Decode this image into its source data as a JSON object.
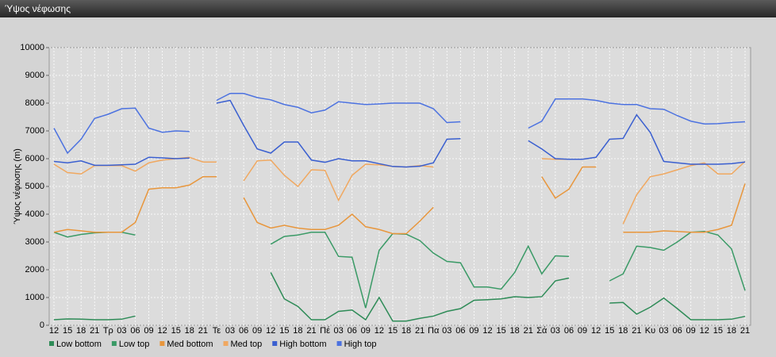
{
  "chart_data": {
    "type": "line",
    "title": "Ύψος νέφωσης",
    "y_label": "Ύψος νέφωσης (m)",
    "categories": [
      "12",
      "15",
      "18",
      "21",
      "Τρ",
      "03",
      "06",
      "09",
      "12",
      "15",
      "18",
      "21",
      "Τε",
      "03",
      "06",
      "09",
      "12",
      "15",
      "18",
      "21",
      "Πέ",
      "03",
      "06",
      "09",
      "12",
      "15",
      "18",
      "21",
      "Πα",
      "03",
      "06",
      "09",
      "12",
      "15",
      "18",
      "21",
      "Σά",
      "03",
      "06",
      "09",
      "12",
      "15",
      "18",
      "21",
      "Κυ",
      "03",
      "06",
      "09",
      "12",
      "15",
      "18",
      "21"
    ],
    "ylim": [
      0,
      10000
    ],
    "yticks": [
      0,
      1000,
      2000,
      3000,
      4000,
      5000,
      6000,
      7000,
      8000,
      9000,
      10000
    ],
    "grid": true,
    "legend": "bottom",
    "series": [
      {
        "name": "Low bottom",
        "color": "#2e8b57",
        "values": [
          200,
          230,
          220,
          200,
          200,
          220,
          330,
          null,
          null,
          null,
          null,
          null,
          null,
          null,
          null,
          null,
          1900,
          950,
          680,
          200,
          200,
          500,
          550,
          200,
          1000,
          150,
          150,
          250,
          330,
          500,
          600,
          900,
          920,
          950,
          1030,
          1000,
          1030,
          1600,
          1700,
          null,
          null,
          800,
          820,
          400,
          650,
          980,
          600,
          200,
          200,
          200,
          220,
          320
        ]
      },
      {
        "name": "Low top",
        "color": "#3a9a66",
        "values": [
          3350,
          3180,
          3270,
          3330,
          3350,
          3350,
          3250,
          null,
          null,
          null,
          null,
          null,
          null,
          null,
          null,
          null,
          2920,
          3200,
          3250,
          3350,
          3350,
          2480,
          2450,
          620,
          2700,
          3300,
          3280,
          3050,
          2600,
          2300,
          2250,
          1380,
          1380,
          1300,
          1900,
          2850,
          1850,
          2500,
          2480,
          null,
          null,
          1600,
          1850,
          2850,
          2800,
          2700,
          3000,
          3350,
          3380,
          3250,
          2750,
          1250
        ]
      },
      {
        "name": "Med bottom",
        "color": "#e8963c",
        "values": [
          3350,
          3450,
          3400,
          3350,
          3350,
          3350,
          3700,
          4900,
          4950,
          4950,
          5050,
          5350,
          5350,
          null,
          4600,
          3700,
          3500,
          3600,
          3500,
          3450,
          3450,
          3600,
          4000,
          3550,
          3450,
          3300,
          3300,
          3750,
          4250,
          null,
          null,
          null,
          null,
          null,
          null,
          null,
          5350,
          4580,
          4900,
          5700,
          5700,
          null,
          3350,
          3350,
          3350,
          3400,
          3380,
          3350,
          3350,
          3450,
          3600,
          5100
        ]
      },
      {
        "name": "Med top",
        "color": "#f0a860",
        "values": [
          5800,
          5500,
          5450,
          5750,
          5750,
          5750,
          5550,
          5850,
          5950,
          6000,
          6050,
          5880,
          5880,
          null,
          5200,
          5920,
          5950,
          5400,
          5000,
          5600,
          5580,
          4500,
          5400,
          5800,
          5780,
          5720,
          5700,
          5750,
          5700,
          null,
          null,
          null,
          null,
          null,
          null,
          null,
          6000,
          5980,
          5980,
          null,
          null,
          null,
          3650,
          4700,
          5350,
          5450,
          5600,
          5750,
          5850,
          5450,
          5450,
          5900
        ]
      },
      {
        "name": "High bottom",
        "color": "#3a5fd0",
        "values": [
          5900,
          5850,
          5920,
          5760,
          5760,
          5780,
          5800,
          6050,
          6030,
          6000,
          6020,
          null,
          8000,
          8100,
          7200,
          6350,
          6200,
          6600,
          6600,
          5950,
          5870,
          6000,
          5920,
          5920,
          5820,
          5720,
          5700,
          5730,
          5850,
          6700,
          6720,
          null,
          null,
          null,
          null,
          6650,
          6350,
          6000,
          5980,
          5980,
          6050,
          6700,
          6730,
          7580,
          6950,
          5900,
          5850,
          5800,
          5800,
          5800,
          5820,
          5880
        ]
      },
      {
        "name": "High top",
        "color": "#4c72e0",
        "values": [
          7100,
          6200,
          6700,
          7450,
          7600,
          7800,
          7820,
          7100,
          6950,
          7000,
          6980,
          null,
          8100,
          8350,
          8350,
          8200,
          8120,
          7950,
          7850,
          7650,
          7750,
          8050,
          8000,
          7950,
          7970,
          8000,
          8000,
          8000,
          7800,
          7300,
          7330,
          null,
          null,
          null,
          null,
          7100,
          7350,
          8150,
          8150,
          8150,
          8100,
          8000,
          7950,
          7950,
          7800,
          7780,
          7550,
          7350,
          7250,
          7260,
          7300,
          7330
        ]
      }
    ]
  }
}
